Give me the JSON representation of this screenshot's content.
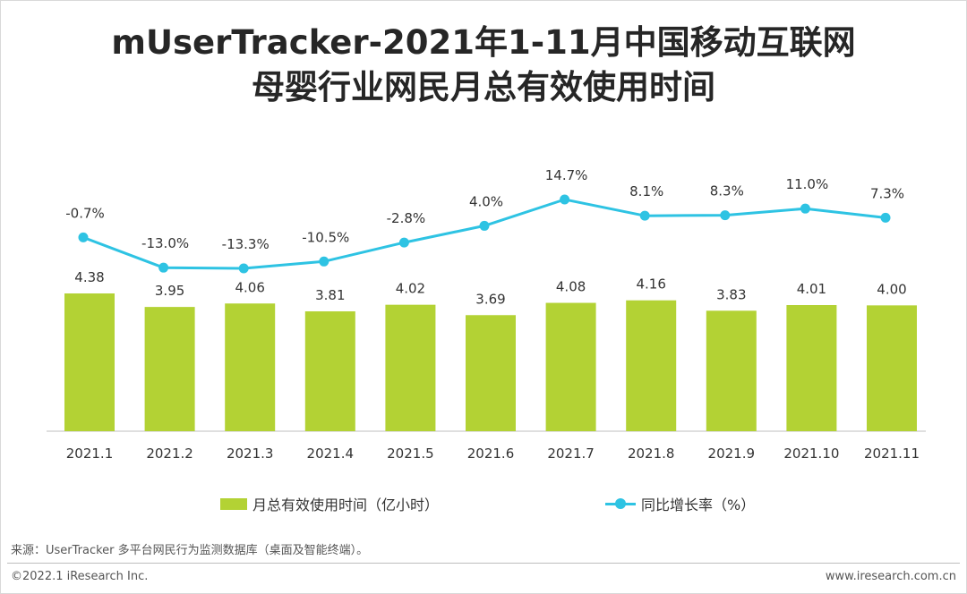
{
  "header": {
    "title_line1": "mUserTracker-2021年1-11月中国移动互联网",
    "title_line2": "母婴行业网民月总有效使用时间"
  },
  "chart_data": {
    "type": "bar",
    "categories": [
      "2021.1",
      "2021.2",
      "2021.3",
      "2021.4",
      "2021.5",
      "2021.6",
      "2021.7",
      "2021.8",
      "2021.9",
      "2021.10",
      "2021.11"
    ],
    "series": [
      {
        "name": "月总有效使用时间（亿小时）",
        "type": "bar",
        "values": [
          4.38,
          3.95,
          4.06,
          3.81,
          4.02,
          3.69,
          4.08,
          4.16,
          3.83,
          4.01,
          4.0
        ],
        "labels": [
          "4.38",
          "3.95",
          "4.06",
          "3.81",
          "4.02",
          "3.69",
          "4.08",
          "4.16",
          "3.83",
          "4.01",
          "4.00"
        ],
        "color": "#b3d234"
      },
      {
        "name": "同比增长率（%）",
        "type": "line",
        "values": [
          -0.7,
          -13.0,
          -13.3,
          -10.5,
          -2.8,
          4.0,
          14.7,
          8.1,
          8.3,
          11.0,
          7.3
        ],
        "labels": [
          "-0.7%",
          "-13.0%",
          "-13.3%",
          "-10.5%",
          "-2.8%",
          "4.0%",
          "14.7%",
          "8.1%",
          "8.3%",
          "11.0%",
          "7.3%"
        ],
        "color": "#2ec3e3"
      }
    ],
    "legend_position": "bottom",
    "grid": false
  },
  "legend": {
    "bar_label": "月总有效使用时间（亿小时）",
    "line_label": "同比增长率（%）"
  },
  "footer": {
    "source": "来源：UserTracker 多平台网民行为监测数据库（桌面及智能终端）。",
    "copyright": "©2022.1 iResearch Inc.",
    "website": "www.iresearch.com.cn"
  },
  "colors": {
    "bar": "#b3d234",
    "line": "#2ec3e3",
    "axis": "#bfbfbf",
    "text": "#333333"
  }
}
